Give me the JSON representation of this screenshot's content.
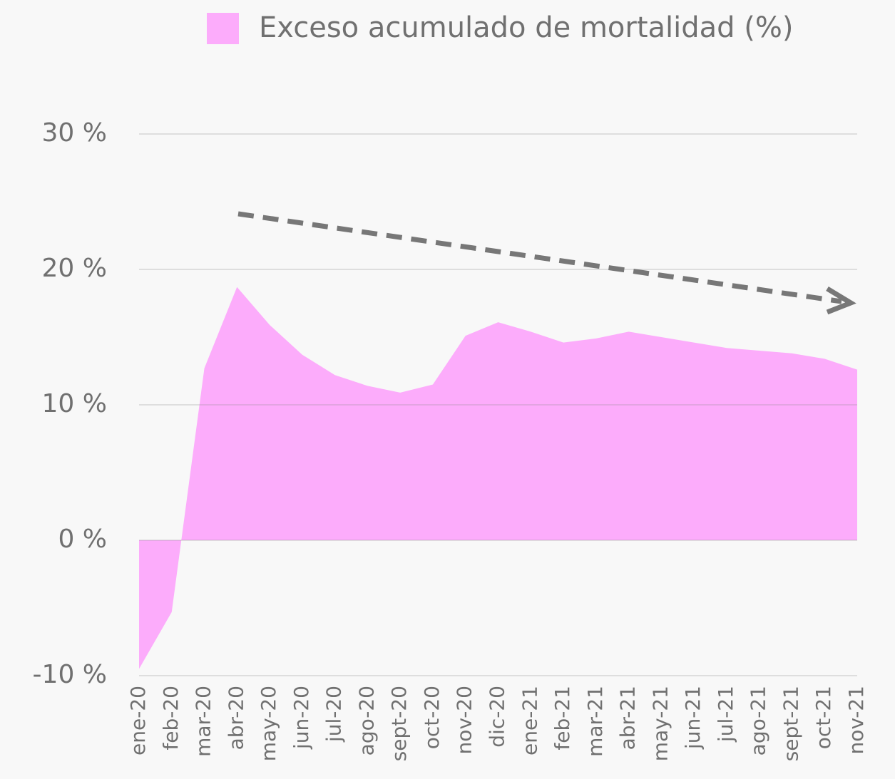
{
  "chart_data": {
    "type": "area",
    "categories": [
      "ene-20",
      "feb-20",
      "mar-20",
      "abr-20",
      "may-20",
      "jun-20",
      "jul-20",
      "ago-20",
      "sept-20",
      "oct-20",
      "nov-20",
      "dic-20",
      "ene-21",
      "feb-21",
      "mar-21",
      "abr-21",
      "may-21",
      "jun-21",
      "jul-21",
      "ago-21",
      "sept-21",
      "oct-21",
      "nov-21"
    ],
    "series": [
      {
        "name": "Exceso acumulado de mortalidad (%)",
        "color": "#fcacfb",
        "values": [
          -9.5,
          -5.3,
          12.7,
          18.7,
          15.9,
          13.7,
          12.2,
          11.4,
          10.9,
          11.5,
          15.1,
          16.1,
          15.4,
          14.6,
          14.9,
          15.4,
          15.0,
          14.6,
          14.2,
          14.0,
          13.8,
          13.4,
          12.6
        ]
      }
    ],
    "ylim": [
      -10,
      30
    ],
    "yticks": [
      {
        "value": -10,
        "label": "-10 %"
      },
      {
        "value": 0,
        "label": "0 %"
      },
      {
        "value": 10,
        "label": "10 %"
      },
      {
        "value": 20,
        "label": "20 %"
      },
      {
        "value": 30,
        "label": "30 %"
      }
    ],
    "grid": true,
    "legend": "top"
  }
}
